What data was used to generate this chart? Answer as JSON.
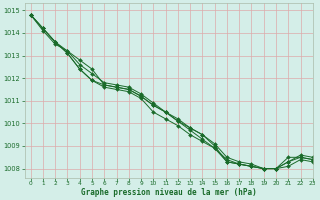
{
  "title": "Graphe pression niveau de la mer (hPa)",
  "bg_color": "#d4eee8",
  "grid_color_major": "#ddaaaa",
  "grid_color_minor": "#ddaaaa",
  "line_color": "#1a6b2a",
  "marker_color": "#1a6b2a",
  "xlim": [
    -0.5,
    23
  ],
  "ylim": [
    1007.6,
    1015.3
  ],
  "yticks": [
    1008,
    1009,
    1010,
    1011,
    1012,
    1013,
    1014,
    1015
  ],
  "xticks": [
    0,
    1,
    2,
    3,
    4,
    5,
    6,
    7,
    8,
    9,
    10,
    11,
    12,
    13,
    14,
    15,
    16,
    17,
    18,
    19,
    20,
    21,
    22,
    23
  ],
  "series": [
    [
      1014.8,
      1014.2,
      1013.6,
      1013.1,
      1012.4,
      1011.9,
      1011.7,
      1011.6,
      1011.5,
      1011.2,
      1010.8,
      1010.5,
      1010.2,
      1009.8,
      1009.5,
      1009.0,
      1008.3,
      1008.2,
      1008.1,
      1008.0,
      1008.0,
      1008.5,
      1008.5,
      1008.4
    ],
    [
      1014.8,
      1014.2,
      1013.6,
      1013.1,
      1012.4,
      1011.9,
      1011.6,
      1011.5,
      1011.4,
      1011.1,
      1010.5,
      1010.2,
      1009.9,
      1009.5,
      1009.2,
      1008.9,
      1008.3,
      1008.2,
      1008.1,
      1008.0,
      1008.0,
      1008.1,
      1008.4,
      1008.3
    ],
    [
      1014.8,
      1014.1,
      1013.5,
      1013.2,
      1012.6,
      1012.2,
      1011.8,
      1011.7,
      1011.6,
      1011.3,
      1010.9,
      1010.5,
      1010.1,
      1009.8,
      1009.5,
      1009.1,
      1008.5,
      1008.3,
      1008.2,
      1008.0,
      1008.0,
      1008.3,
      1008.6,
      1008.5
    ],
    [
      1014.8,
      1014.2,
      1013.6,
      1013.2,
      1012.8,
      1012.4,
      1011.7,
      1011.6,
      1011.5,
      1011.2,
      1010.8,
      1010.5,
      1010.1,
      1009.7,
      1009.3,
      1008.9,
      1008.4,
      1008.2,
      1008.1,
      1008.0,
      1008.0,
      1008.3,
      1008.5,
      1008.4
    ]
  ]
}
